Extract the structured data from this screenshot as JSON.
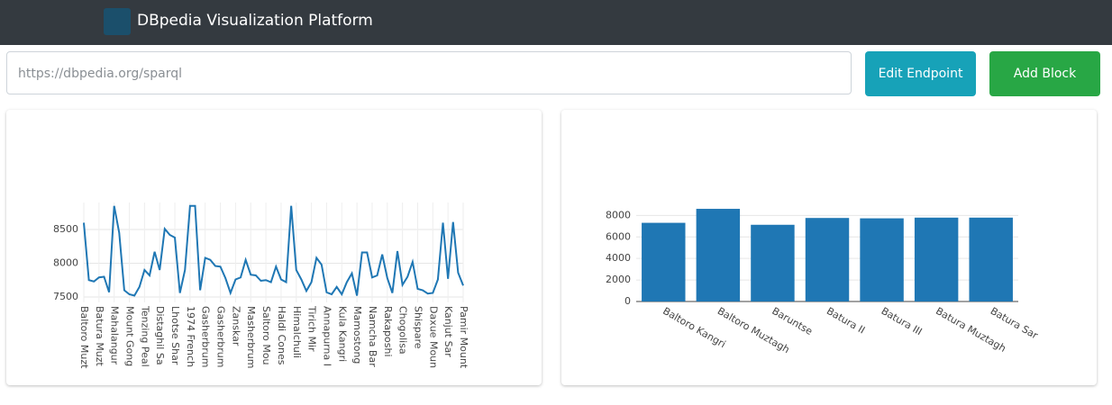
{
  "navbar": {
    "title": "DBpedia Visualization Platform"
  },
  "endpoint": {
    "placeholder": "https://dbpedia.org/sparql"
  },
  "buttons": [
    "Edit Endpoint",
    "Add Block"
  ],
  "chart_data": [
    {
      "type": "line",
      "color": "#1f77b4",
      "grid": true,
      "categories": [
        "Baltoro Muzt",
        null,
        null,
        "Batura Muzt",
        null,
        null,
        "Mahalangur",
        null,
        null,
        "Mount Gong",
        null,
        null,
        "Tenzing Peal",
        null,
        null,
        "Distaghil Sa",
        null,
        null,
        "Lhotse Shar",
        null,
        null,
        "1974 French",
        null,
        null,
        "Gasherbrum",
        null,
        null,
        "Gasherbrum",
        null,
        null,
        "Zanskar",
        null,
        null,
        "Masherbrum",
        null,
        null,
        "Saltoro Mou",
        null,
        null,
        "Haldi Cones",
        null,
        null,
        "Himalchuli",
        null,
        null,
        "Tirich Mir",
        null,
        null,
        "Annapurna I",
        null,
        null,
        "Kula Kangri",
        null,
        null,
        "Mamostong",
        null,
        null,
        "Namcha Bar",
        null,
        null,
        "Rakaposhi",
        null,
        null,
        "Chogolisa",
        null,
        null,
        "Shispare",
        null,
        null,
        "Daxue Moun",
        null,
        null,
        "Kanjut Sar",
        null,
        null,
        "Pamir Mount"
      ],
      "values": [
        8600,
        7750,
        7730,
        7790,
        7800,
        7570,
        8850,
        8450,
        7600,
        7540,
        7520,
        7650,
        7900,
        7820,
        8170,
        7900,
        8510,
        8420,
        8380,
        7560,
        7900,
        8850,
        8850,
        7600,
        8080,
        8050,
        7960,
        7950,
        7780,
        7560,
        7760,
        7790,
        8050,
        7830,
        7820,
        7740,
        7750,
        7720,
        7950,
        7760,
        7720,
        8850,
        7900,
        7760,
        7590,
        7720,
        8080,
        7980,
        7570,
        7540,
        7650,
        7540,
        7720,
        7850,
        7520,
        8160,
        8160,
        7790,
        7820,
        8130,
        7780,
        7560,
        8180,
        7680,
        7800,
        8020,
        7620,
        7600,
        7550,
        7560,
        7760,
        8600,
        7770,
        8610,
        7860,
        7670
      ],
      "ylim": [
        7420,
        8900
      ],
      "yticks": [
        7500,
        8000,
        8500
      ]
    },
    {
      "type": "bar",
      "color": "#1f77b4",
      "grid": true,
      "categories": [
        "Baltoro Kangri",
        "Baltoro Muztagh",
        "Baruntse",
        "Batura II",
        "Batura III",
        "Batura Muztagh",
        "Batura Sar"
      ],
      "values": [
        7312,
        8611,
        7129,
        7762,
        7729,
        7795,
        7795
      ],
      "ylim": [
        0,
        9200
      ],
      "yticks": [
        0,
        2000,
        4000,
        6000,
        8000
      ]
    }
  ]
}
